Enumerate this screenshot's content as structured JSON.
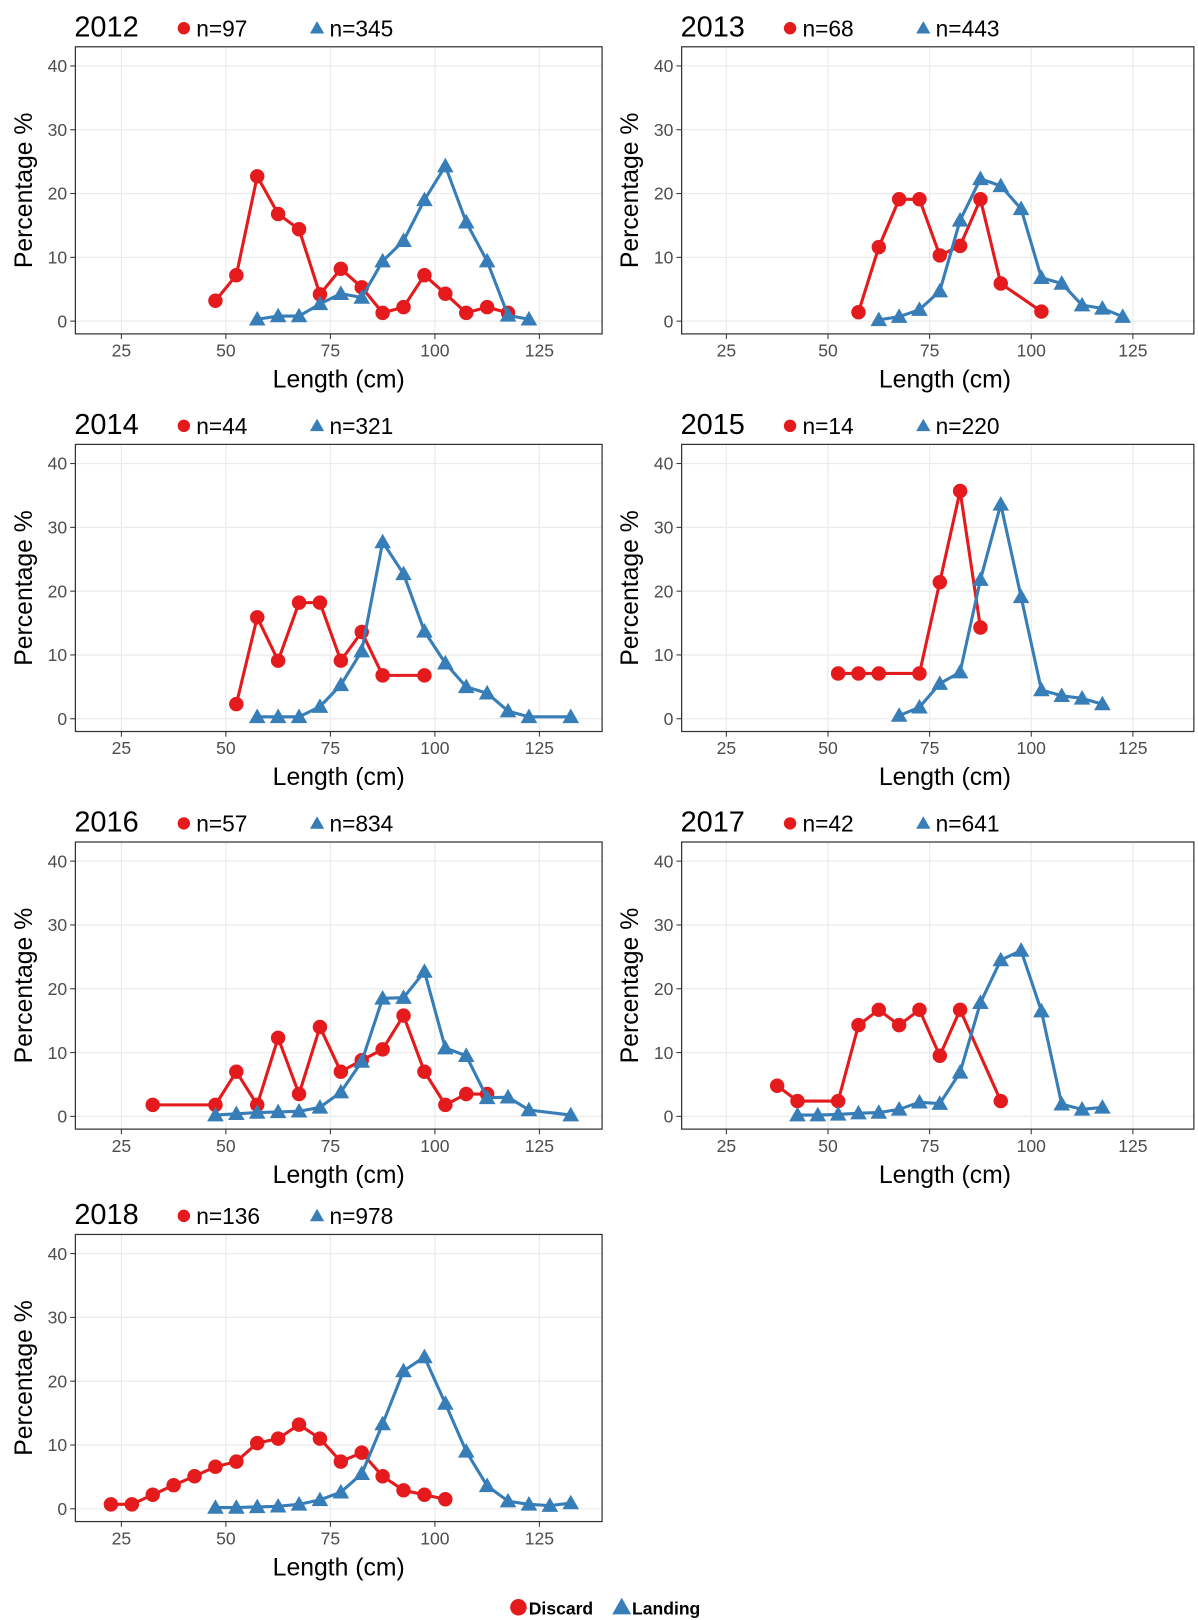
{
  "chart_data": [
    {
      "type": "line",
      "title": "2012",
      "annotations": [
        "n=97",
        "n=345"
      ],
      "xlabel": "Length (cm)",
      "ylabel": "Percentage %",
      "xlim": [
        14,
        140
      ],
      "ylim": [
        -2,
        43
      ],
      "xticks": [
        25,
        50,
        75,
        100,
        125
      ],
      "yticks": [
        0,
        10,
        20,
        30,
        40
      ],
      "grid": true,
      "series": [
        {
          "name": "Discard",
          "color": "#e41a1c",
          "marker": "circle",
          "x": [
            47.5,
            52.5,
            57.5,
            62.5,
            67.5,
            72.5,
            77.5,
            82.5,
            87.5,
            92.5,
            97.5,
            102.5,
            107.5,
            112.5,
            117.5
          ],
          "values": [
            3.2,
            7.2,
            22.7,
            16.8,
            14.4,
            4.2,
            8.2,
            5.3,
            1.3,
            2.2,
            7.2,
            4.3,
            1.3,
            2.2,
            1.3
          ]
        },
        {
          "name": "Landing",
          "color": "#377eb8",
          "marker": "triangle",
          "x": [
            57.5,
            62.5,
            67.5,
            72.5,
            77.5,
            82.5,
            87.5,
            92.5,
            97.5,
            102.5,
            107.5,
            112.5,
            117.5,
            122.5
          ],
          "values": [
            0.3,
            0.8,
            0.8,
            2.7,
            4.3,
            3.7,
            9.4,
            12.6,
            19,
            24.3,
            15.5,
            9.4,
            0.9,
            0.3
          ]
        }
      ]
    },
    {
      "type": "line",
      "title": "2013",
      "annotations": [
        "n=68",
        "n=443"
      ],
      "xlabel": "Length (cm)",
      "ylabel": "Percentage %",
      "xlim": [
        14,
        140
      ],
      "ylim": [
        -2,
        43
      ],
      "xticks": [
        25,
        50,
        75,
        100,
        125
      ],
      "yticks": [
        0,
        10,
        20,
        30,
        40
      ],
      "grid": true,
      "series": [
        {
          "name": "Discard",
          "color": "#e41a1c",
          "marker": "circle",
          "x": [
            57.5,
            62.5,
            67.5,
            72.5,
            77.5,
            82.5,
            87.5,
            92.5,
            102.5
          ],
          "values": [
            1.4,
            11.6,
            19.1,
            19.1,
            10.3,
            11.8,
            19.1,
            5.9,
            1.5
          ]
        },
        {
          "name": "Landing",
          "color": "#377eb8",
          "marker": "triangle",
          "x": [
            62.5,
            67.5,
            72.5,
            77.5,
            82.5,
            87.5,
            92.5,
            97.5,
            102.5,
            107.5,
            112.5,
            117.5,
            122.5
          ],
          "values": [
            0.2,
            0.7,
            1.8,
            4.7,
            15.8,
            22.3,
            21.2,
            17.6,
            6.8,
            5.9,
            2.5,
            2.0,
            0.7
          ]
        }
      ]
    },
    {
      "type": "line",
      "title": "2014",
      "annotations": [
        "n=44",
        "n=321"
      ],
      "xlabel": "Length (cm)",
      "ylabel": "Percentage %",
      "xlim": [
        14,
        140
      ],
      "ylim": [
        -2,
        43
      ],
      "xticks": [
        25,
        50,
        75,
        100,
        125
      ],
      "yticks": [
        0,
        10,
        20,
        30,
        40
      ],
      "grid": true,
      "series": [
        {
          "name": "Discard",
          "color": "#e41a1c",
          "marker": "circle",
          "x": [
            52.5,
            57.5,
            62.5,
            67.5,
            72.5,
            77.5,
            82.5,
            87.5,
            97.5
          ],
          "values": [
            2.3,
            15.9,
            9.1,
            18.2,
            18.2,
            9.1,
            13.6,
            6.8,
            6.8
          ]
        },
        {
          "name": "Landing",
          "color": "#377eb8",
          "marker": "triangle",
          "x": [
            57.5,
            62.5,
            67.5,
            72.5,
            77.5,
            82.5,
            87.5,
            92.5,
            97.5,
            102.5,
            107.5,
            112.5,
            117.5,
            122.5,
            132.5
          ],
          "values": [
            0.3,
            0.3,
            0.3,
            1.9,
            5.3,
            10.6,
            27.7,
            22.7,
            13.7,
            8.7,
            5,
            4,
            1.2,
            0.3,
            0.3
          ]
        }
      ]
    },
    {
      "type": "line",
      "title": "2015",
      "annotations": [
        "n=14",
        "n=220"
      ],
      "xlabel": "Length (cm)",
      "ylabel": "Percentage %",
      "xlim": [
        14,
        140
      ],
      "ylim": [
        -2,
        43
      ],
      "xticks": [
        25,
        50,
        75,
        100,
        125
      ],
      "yticks": [
        0,
        10,
        20,
        30,
        40
      ],
      "grid": true,
      "series": [
        {
          "name": "Discard",
          "color": "#e41a1c",
          "marker": "circle",
          "x": [
            52.5,
            57.5,
            62.5,
            72.5,
            77.5,
            82.5,
            87.5
          ],
          "values": [
            7.1,
            7.1,
            7.1,
            7.1,
            21.4,
            35.7,
            14.3
          ]
        },
        {
          "name": "Landing",
          "color": "#377eb8",
          "marker": "triangle",
          "x": [
            67.5,
            72.5,
            77.5,
            82.5,
            87.5,
            92.5,
            97.5,
            102.5,
            107.5,
            112.5,
            117.5
          ],
          "values": [
            0.5,
            1.8,
            5.5,
            7.3,
            21.8,
            33.6,
            19.1,
            4.5,
            3.6,
            3.2,
            2.3
          ]
        }
      ]
    },
    {
      "type": "line",
      "title": "2016",
      "annotations": [
        "n=57",
        "n=834"
      ],
      "xlabel": "Length (cm)",
      "ylabel": "Percentage %",
      "xlim": [
        14,
        140
      ],
      "ylim": [
        -2,
        43
      ],
      "xticks": [
        25,
        50,
        75,
        100,
        125
      ],
      "yticks": [
        0,
        10,
        20,
        30,
        40
      ],
      "grid": true,
      "series": [
        {
          "name": "Discard",
          "color": "#e41a1c",
          "marker": "circle",
          "x": [
            32.5,
            47.5,
            52.5,
            57.5,
            62.5,
            67.5,
            72.5,
            77.5,
            82.5,
            87.5,
            92.5,
            97.5,
            102.5,
            107.5,
            112.5
          ],
          "values": [
            1.8,
            1.8,
            7.0,
            1.8,
            12.3,
            3.5,
            14.0,
            7.0,
            8.8,
            10.5,
            15.8,
            7.0,
            1.8,
            3.5,
            3.5
          ]
        },
        {
          "name": "Landing",
          "color": "#377eb8",
          "marker": "triangle",
          "x": [
            47.5,
            52.5,
            57.5,
            62.5,
            67.5,
            72.5,
            77.5,
            82.5,
            87.5,
            92.5,
            97.5,
            102.5,
            107.5,
            112.5,
            117.5,
            122.5,
            132.5
          ],
          "values": [
            0.2,
            0.4,
            0.6,
            0.7,
            0.8,
            1.4,
            3.8,
            8.6,
            18.5,
            18.6,
            22.7,
            10.7,
            9.5,
            2.9,
            3.0,
            1.0,
            0.2
          ]
        }
      ]
    },
    {
      "type": "line",
      "title": "2017",
      "annotations": [
        "n=42",
        "n=641"
      ],
      "xlabel": "Length (cm)",
      "ylabel": "Percentage %",
      "xlim": [
        14,
        140
      ],
      "ylim": [
        -2,
        43
      ],
      "xticks": [
        25,
        50,
        75,
        100,
        125
      ],
      "yticks": [
        0,
        10,
        20,
        30,
        40
      ],
      "grid": true,
      "series": [
        {
          "name": "Discard",
          "color": "#e41a1c",
          "marker": "circle",
          "x": [
            37.5,
            42.5,
            52.5,
            57.5,
            62.5,
            67.5,
            72.5,
            77.5,
            82.5,
            92.5
          ],
          "values": [
            4.8,
            2.4,
            2.4,
            14.3,
            16.7,
            14.3,
            16.7,
            9.5,
            16.7,
            2.4
          ]
        },
        {
          "name": "Landing",
          "color": "#377eb8",
          "marker": "triangle",
          "x": [
            42.5,
            47.5,
            52.5,
            57.5,
            62.5,
            67.5,
            72.5,
            77.5,
            82.5,
            87.5,
            92.5,
            97.5,
            102.5,
            107.5,
            112.5,
            117.5
          ],
          "values": [
            0.2,
            0.2,
            0.3,
            0.5,
            0.6,
            1.1,
            2.2,
            2.0,
            6.9,
            17.8,
            24.5,
            26,
            16.5,
            1.9,
            1.1,
            1.4
          ]
        }
      ]
    },
    {
      "type": "line",
      "title": "2018",
      "annotations": [
        "n=136",
        "n=978"
      ],
      "xlabel": "Length (cm)",
      "ylabel": "Percentage %",
      "xlim": [
        14,
        140
      ],
      "ylim": [
        -2,
        43
      ],
      "xticks": [
        25,
        50,
        75,
        100,
        125
      ],
      "yticks": [
        0,
        10,
        20,
        30,
        40
      ],
      "grid": true,
      "series": [
        {
          "name": "Discard",
          "color": "#e41a1c",
          "marker": "circle",
          "x": [
            22.5,
            27.5,
            32.5,
            37.5,
            42.5,
            47.5,
            52.5,
            57.5,
            62.5,
            67.5,
            72.5,
            77.5,
            82.5,
            87.5,
            92.5,
            97.5,
            102.5
          ],
          "values": [
            0.7,
            0.7,
            2.2,
            3.7,
            5.1,
            6.6,
            7.4,
            10.3,
            11.0,
            13.2,
            11.0,
            7.4,
            8.8,
            5.1,
            2.9,
            2.2,
            1.5
          ]
        },
        {
          "name": "Landing",
          "color": "#377eb8",
          "marker": "triangle",
          "x": [
            47.5,
            52.5,
            57.5,
            62.5,
            67.5,
            72.5,
            77.5,
            82.5,
            87.5,
            92.5,
            97.5,
            102.5,
            107.5,
            112.5,
            117.5,
            122.5,
            127.5,
            132.5
          ],
          "values": [
            0.2,
            0.2,
            0.3,
            0.4,
            0.7,
            1.4,
            2.6,
            5.5,
            13.3,
            21.6,
            23.8,
            16.5,
            9.0,
            3.6,
            1.2,
            0.7,
            0.5,
            0.9
          ]
        }
      ]
    }
  ]
}
